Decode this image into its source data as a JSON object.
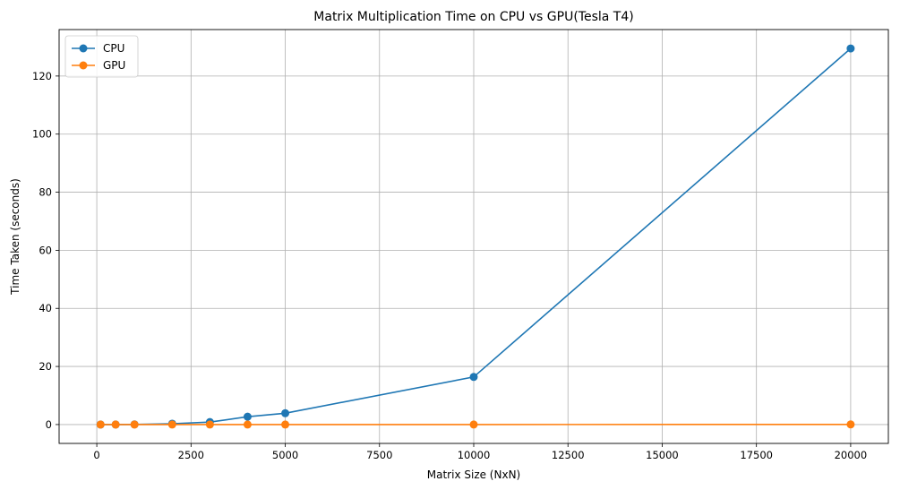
{
  "chart_data": {
    "type": "line",
    "title": "Matrix Multiplication Time on CPU vs GPU(Tesla T4)",
    "xlabel": "Matrix Size (NxN)",
    "ylabel": "Time Taken (seconds)",
    "xlim": [
      -1000,
      21000
    ],
    "ylim": [
      -6.5,
      136
    ],
    "xticks": [
      0,
      2500,
      5000,
      7500,
      10000,
      12500,
      15000,
      17500,
      20000
    ],
    "yticks": [
      0,
      20,
      40,
      60,
      80,
      100,
      120
    ],
    "grid": true,
    "legend_position": "top-left",
    "series": [
      {
        "name": "CPU",
        "color": "#1f77b4",
        "x": [
          100,
          500,
          1000,
          2000,
          3000,
          4000,
          5000,
          10000,
          20000
        ],
        "y": [
          0.0,
          0.01,
          0.05,
          0.3,
          0.85,
          2.7,
          3.9,
          16.4,
          129.5
        ]
      },
      {
        "name": "GPU",
        "color": "#ff7f0e",
        "x": [
          100,
          500,
          1000,
          2000,
          3000,
          4000,
          5000,
          10000,
          20000
        ],
        "y": [
          0.0,
          0.0,
          0.0,
          0.0,
          0.0,
          0.0,
          0.0,
          0.0,
          0.05
        ]
      }
    ]
  }
}
